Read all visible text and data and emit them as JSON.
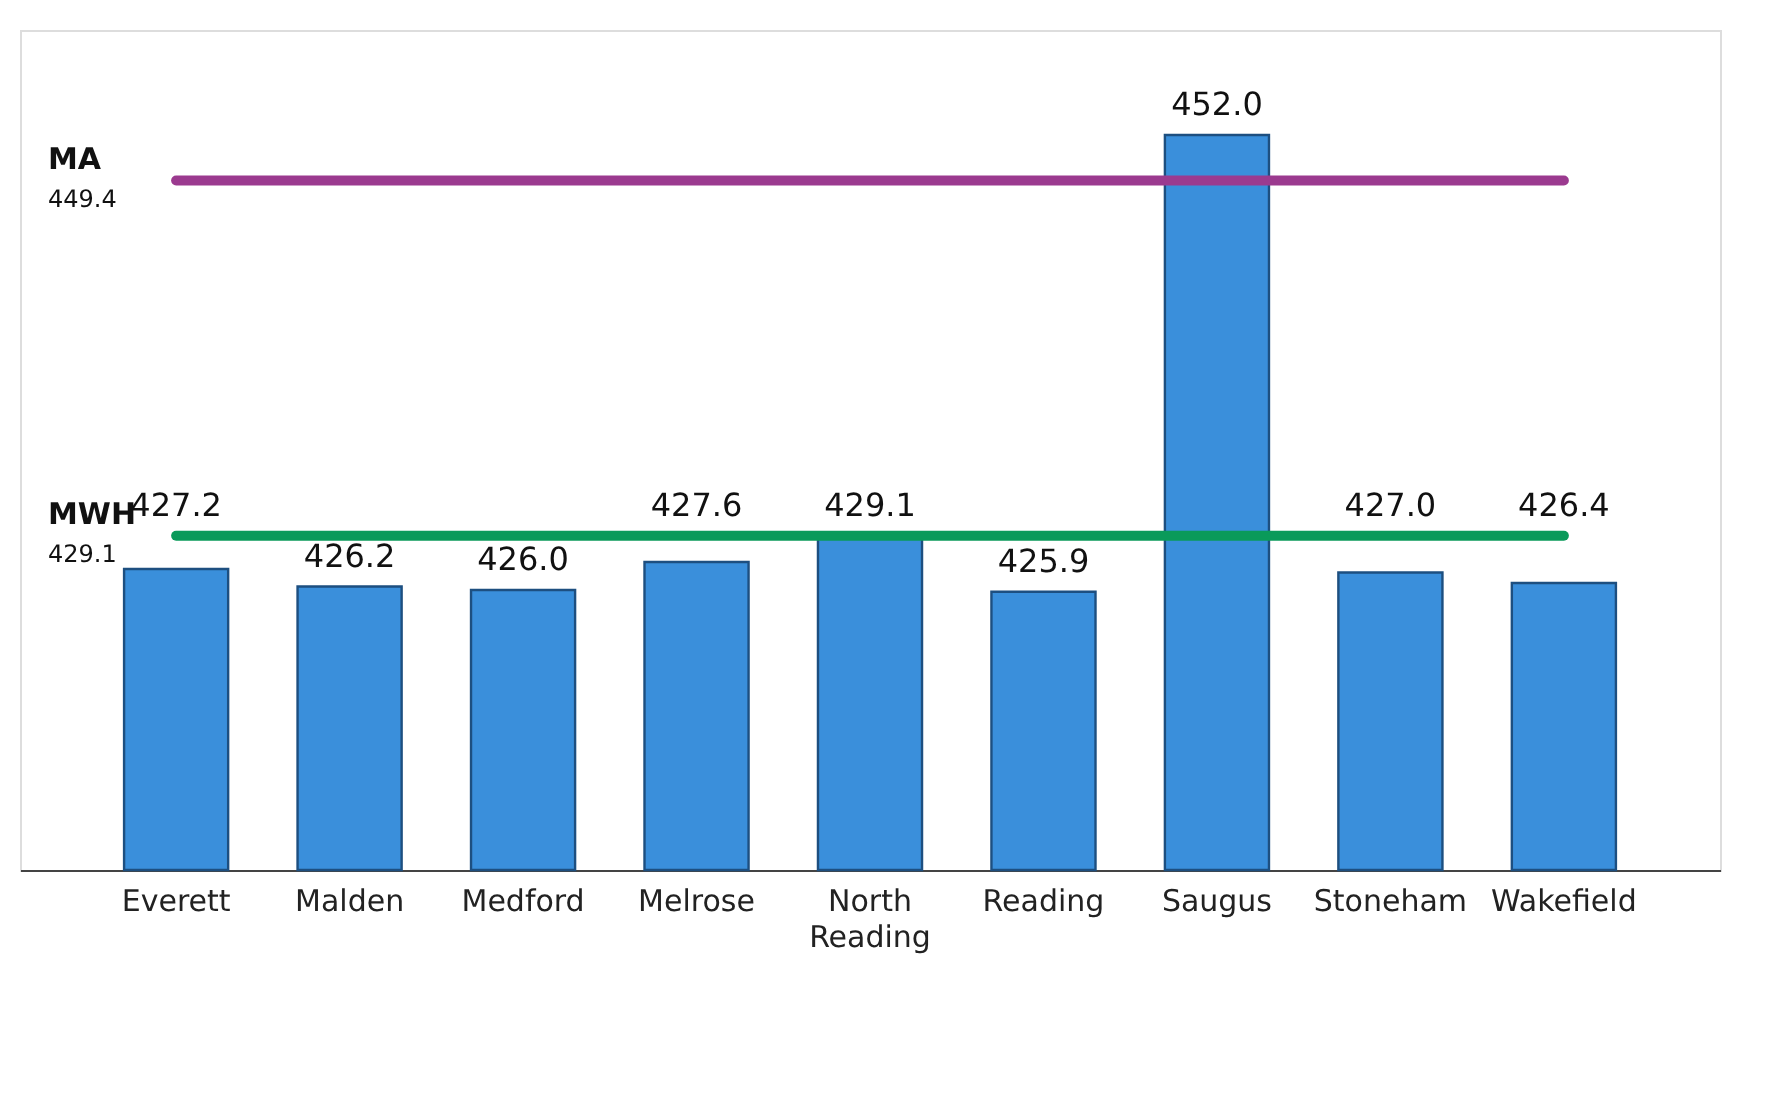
{
  "chart_data": {
    "type": "bar",
    "categories": [
      "Everett",
      "Malden",
      "Medford",
      "Melrose",
      "North Reading",
      "Reading",
      "Saugus",
      "Stoneham",
      "Wakefield"
    ],
    "values": [
      427.2,
      426.2,
      426.0,
      427.6,
      429.1,
      425.9,
      452.0,
      427.0,
      426.4
    ],
    "value_labels": [
      "427.2",
      "426.2",
      "426.0",
      "427.6",
      "429.1",
      "425.9",
      "452.0",
      "427.0",
      "426.4"
    ],
    "color": "#3a8fdb",
    "ylim": [
      410,
      458
    ],
    "tick_labels": "x",
    "grid": false,
    "ref_lines": [
      {
        "axis": "y",
        "value": 449.4,
        "label": "MA",
        "color": "#9b3a8f"
      },
      {
        "axis": "y",
        "value": 429.1,
        "label": "MWH",
        "color": "#0a9a5a"
      }
    ],
    "data_labels": true,
    "annotations": [
      "449.4",
      "429.1"
    ]
  }
}
